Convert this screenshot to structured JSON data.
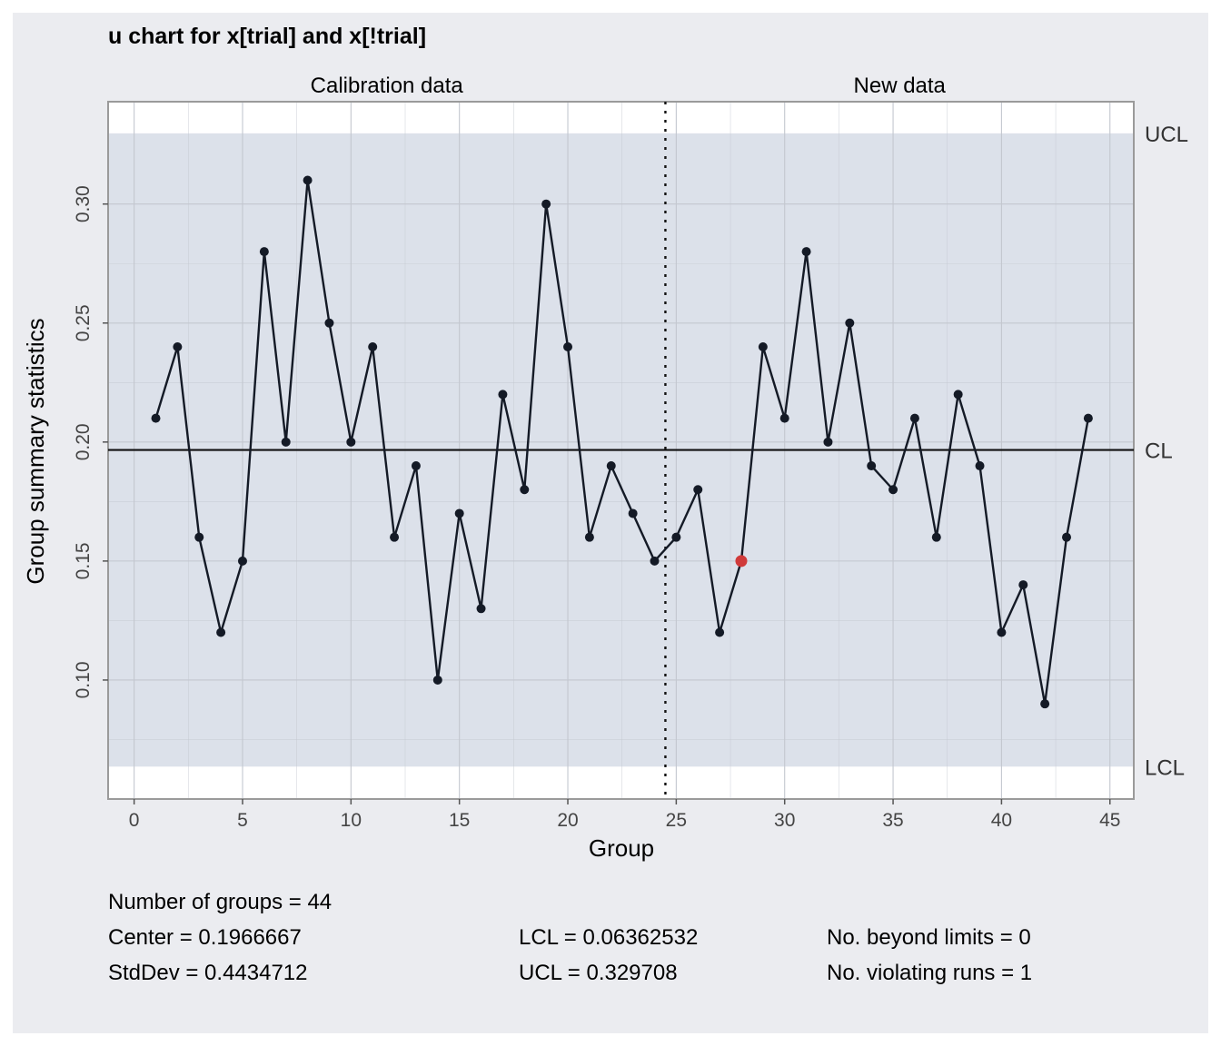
{
  "chart_data": {
    "type": "line",
    "title": "u chart for x[trial] and x[!trial]",
    "xlabel": "Group",
    "ylabel": "Group summary statistics",
    "xlim": [
      -1.2,
      46.1
    ],
    "ylim": [
      0.05,
      0.343
    ],
    "xticks": [
      0,
      5,
      10,
      15,
      20,
      25,
      30,
      35,
      40,
      45
    ],
    "xtick_labels": [
      "0",
      "5",
      "10",
      "15",
      "20",
      "25",
      "30",
      "35",
      "40",
      "45"
    ],
    "yticks": [
      0.1,
      0.15,
      0.2,
      0.25,
      0.3
    ],
    "ytick_labels": [
      "0.10",
      "0.15",
      "0.20",
      "0.25",
      "0.30"
    ],
    "center": 0.1966667,
    "lcl": 0.06362532,
    "ucl": 0.329708,
    "limit_labels": {
      "ucl": "UCL",
      "cl": "CL",
      "lcl": "LCL"
    },
    "split_at": 24.5,
    "sections": [
      {
        "label": "Calibration data"
      },
      {
        "label": "New data"
      }
    ],
    "series": [
      {
        "x": [
          1,
          2,
          3,
          4,
          5,
          6,
          7,
          8,
          9,
          10,
          11,
          12,
          13,
          14,
          15,
          16,
          17,
          18,
          19,
          20,
          21,
          22,
          23,
          24,
          25,
          26,
          27,
          28,
          29,
          30,
          31,
          32,
          33,
          34,
          35,
          36,
          37,
          38,
          39,
          40,
          41,
          42,
          43,
          44
        ],
        "values": [
          0.21,
          0.24,
          0.16,
          0.12,
          0.15,
          0.28,
          0.2,
          0.31,
          0.25,
          0.2,
          0.24,
          0.16,
          0.19,
          0.1,
          0.17,
          0.13,
          0.22,
          0.18,
          0.3,
          0.24,
          0.16,
          0.19,
          0.17,
          0.15,
          0.16,
          0.18,
          0.12,
          0.15,
          0.24,
          0.21,
          0.28,
          0.2,
          0.25,
          0.19,
          0.18,
          0.21,
          0.16,
          0.22,
          0.19,
          0.12,
          0.14,
          0.09,
          0.16,
          0.21
        ],
        "color": "#141a26"
      }
    ],
    "violating_points": [
      28
    ],
    "violation_color": "#d03a3a",
    "grid": true,
    "colors": {
      "panel": "#ebecf0",
      "limits_band": "#dce1ea",
      "plot_bg": "#ffffff",
      "grid": "#c3c7cf"
    }
  },
  "stats": {
    "groups": "Number of groups = 44",
    "center": "Center = 0.1966667",
    "stddev": "StdDev = 0.4434712",
    "lcl": "LCL = 0.06362532",
    "ucl": "UCL = 0.329708",
    "beyond": "No. beyond limits = 0",
    "runs": "No. violating runs = 1"
  }
}
